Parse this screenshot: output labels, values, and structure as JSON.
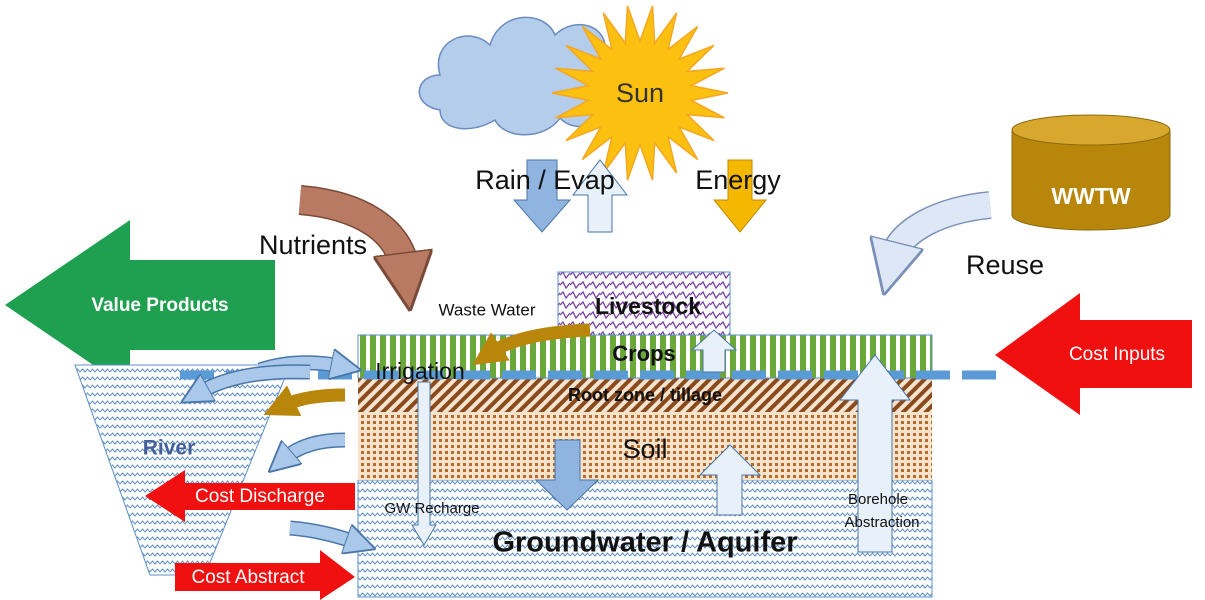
{
  "labels": {
    "sun": "Sun",
    "rain_evap": "Rain / Evap",
    "energy": "Energy",
    "wwtw": "WWTW",
    "nutrients": "Nutrients",
    "reuse": "Reuse",
    "value_products": "Value Products",
    "waste_water": "Waste Water",
    "livestock": "Livestock",
    "crops": "Crops",
    "irrigation": "Irrigation",
    "root_zone": "Root zone / tillage",
    "soil": "Soil",
    "river": "River",
    "cost_inputs": "Cost Inputs",
    "cost_discharge": "Cost Discharge",
    "gw_recharge": "GW Recharge",
    "borehole_line1": "Borehole",
    "borehole_line2": "Abstraction",
    "groundwater": "Groundwater / Aquifer",
    "cost_abstract": "Cost Abstract"
  }
}
